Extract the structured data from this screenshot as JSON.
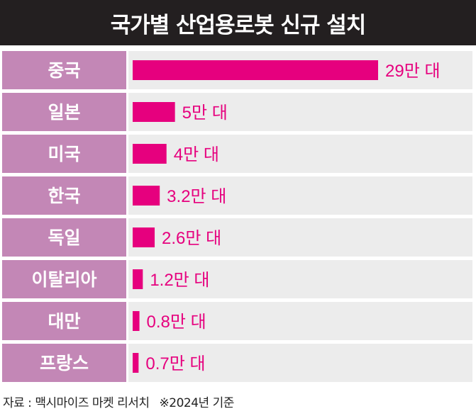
{
  "title": "국가별 산업용로봇 신규 설치",
  "colors": {
    "title_bg": "#231f20",
    "label_bg": "#c387b6",
    "track_bg": "#ececec",
    "bar": "#e6007e",
    "value_text": "#e6007e",
    "label_text": "#ffffff"
  },
  "chart_data": {
    "type": "bar",
    "orientation": "horizontal",
    "title": "국가별 산업용로봇 신규 설치",
    "categories": [
      "중국",
      "일본",
      "미국",
      "한국",
      "독일",
      "이탈리아",
      "대만",
      "프랑스"
    ],
    "values": [
      29,
      5,
      4,
      3.2,
      2.6,
      1.2,
      0.8,
      0.7
    ],
    "value_labels": [
      "29만 대",
      "5만 대",
      "4만 대",
      "3.2만 대",
      "2.6만 대",
      "1.2만 대",
      "0.8만 대",
      "0.7만 대"
    ],
    "xlim": [
      0,
      29
    ],
    "grid": false,
    "legend": "none"
  },
  "footer": {
    "source": "자료 : 맥시마이즈 마켓 리서치",
    "note": "※2024년 기준"
  }
}
